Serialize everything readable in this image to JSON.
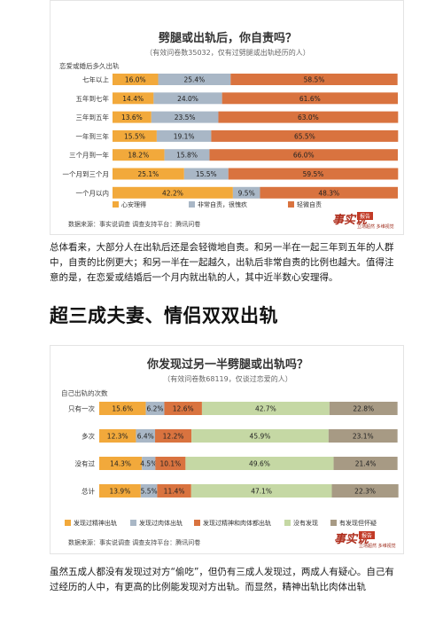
{
  "chart_data": [
    {
      "type": "bar",
      "stacked": true,
      "orientation": "horizontal",
      "title": "劈腿或出轨后，你自责吗？",
      "subtitle": "（有效问卷数35032，仅有过劈腿或出轨经历的人）",
      "ylabel": "恋爱或婚后多久出轨",
      "categories": [
        "七年以上",
        "五年到七年",
        "三年到五年",
        "一年到三年",
        "三个月到一年",
        "一个月到三个月",
        "一个月以内"
      ],
      "series": [
        {
          "name": "心安理得",
          "color": "#f2a93b",
          "values": [
            16.0,
            14.4,
            13.6,
            15.5,
            18.2,
            25.1,
            42.2
          ]
        },
        {
          "name": "非常自责，很愧疚",
          "color": "#a9b7c6",
          "values": [
            25.4,
            24.0,
            23.5,
            19.1,
            15.8,
            15.5,
            9.5
          ]
        },
        {
          "name": "轻微自责",
          "color": "#d9733f",
          "values": [
            58.5,
            61.6,
            63.0,
            65.5,
            66.0,
            59.5,
            48.3
          ]
        }
      ],
      "xlim": [
        0,
        100
      ],
      "legend": "bottom",
      "source": "数据来源：事实说调查   调查支持平台：腾讯问卷"
    },
    {
      "type": "bar",
      "stacked": true,
      "orientation": "horizontal",
      "title": "你发现过另一半劈腿或出轨吗？",
      "subtitle": "（有效问卷数68119，仅谈过恋爱的人）",
      "ylabel": "自己出轨的次数",
      "categories": [
        "只有一次",
        "多次",
        "没有过",
        "总计"
      ],
      "series": [
        {
          "name": "发现过精神出轨",
          "color": "#f2a93b",
          "values": [
            15.6,
            12.3,
            14.3,
            13.9
          ]
        },
        {
          "name": "发现过肉体出轨",
          "color": "#a9b7c6",
          "values": [
            6.2,
            6.4,
            4.5,
            5.5
          ]
        },
        {
          "name": "发现过精神和肉体都出轨",
          "color": "#d9733f",
          "values": [
            12.6,
            12.2,
            10.1,
            11.4
          ]
        },
        {
          "name": "没有发现",
          "color": "#c5d8a4",
          "values": [
            42.7,
            45.9,
            49.6,
            47.1
          ]
        },
        {
          "name": "有发现但怀疑",
          "color": "#a79a84",
          "values": [
            22.8,
            23.1,
            21.4,
            22.3
          ]
        }
      ],
      "xlim": [
        0,
        100
      ],
      "legend": "bottom",
      "source": "数据来源：事实说调查   调查支持平台：腾讯问卷"
    }
  ],
  "stamp": {
    "brand": "事实说",
    "tag": "报告",
    "slogan": "立场超然 多维视觉"
  },
  "text": {
    "para1": "总体看来，大部分人在出轨后还是会轻微地自责。和另一半在一起三年到五年的人群中，自责的比例更大；和另一半在一起越久，出轨后非常自责的比例也越大。值得注意的是，在恋爱或结婚后一个月内就出轨的人，其中近半数心安理得。",
    "heading": "超三成夫妻、情侣双双出轨",
    "para2": "虽然五成人都没有发现过对方“偷吃”，但仍有三成人发现过，两成人有疑心。自己有过经历的人中，有更高的比例能发现对方出轨。而显然，精神出轨比肉体出轨"
  }
}
